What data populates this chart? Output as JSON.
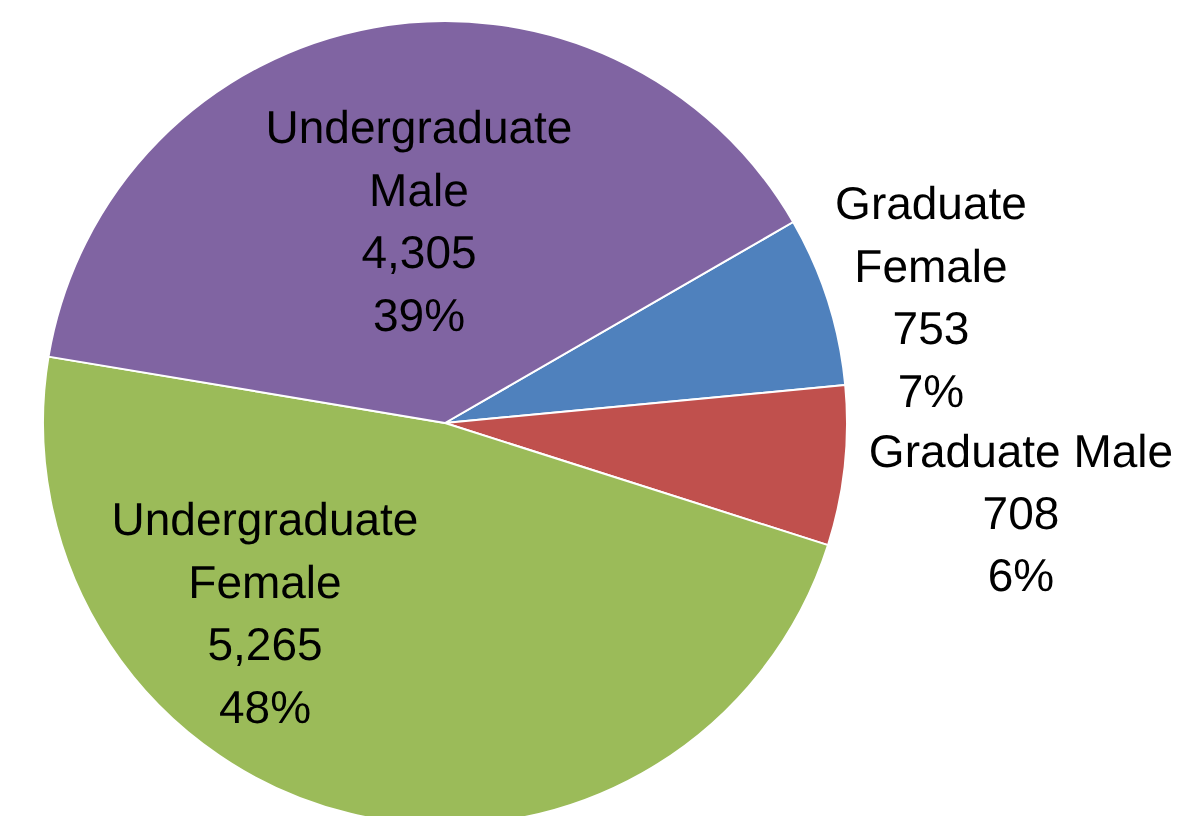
{
  "chart_data": {
    "type": "pie",
    "categories": [
      "Graduate Female",
      "Graduate Male",
      "Undergraduate Female",
      "Undergraduate Male"
    ],
    "values": [
      753,
      708,
      5265,
      4305
    ],
    "colors": [
      "#4f81bd",
      "#c0504d",
      "#9bbb59",
      "#8064a2"
    ],
    "value_labels": [
      "753\n7%",
      "708\n6%",
      "5,265\n48%",
      "4,305\n39%"
    ]
  }
}
